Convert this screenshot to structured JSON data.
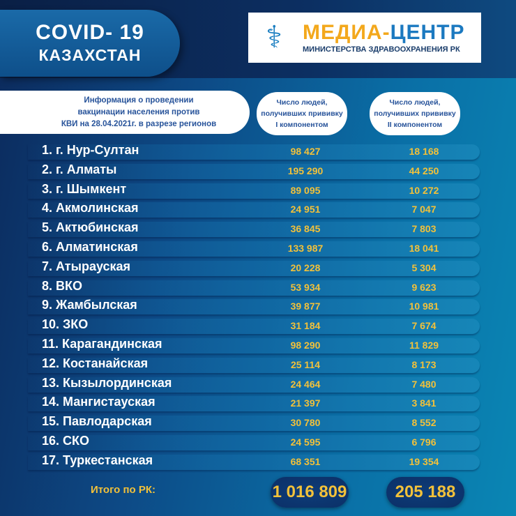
{
  "header": {
    "title_line1": "COVID- 19",
    "title_line2": "КАЗАХСТАН"
  },
  "logo": {
    "name_part1": "МЕДИА-",
    "name_part2": "ЦЕНТР",
    "subtitle": "МИНИСТЕРСТВА ЗДРАВООХРАНЕНИЯ РК",
    "icon": "caduceus-icon"
  },
  "info": {
    "line1": "Информация о проведении",
    "line2": "вакцинации населения против",
    "line3": "КВИ на 28.04.2021г. в разрезе регионов"
  },
  "columns": [
    {
      "line1": "Число людей,",
      "line2": "получивших прививку",
      "line3": "I компонентом"
    },
    {
      "line1": "Число людей,",
      "line2": "получивших прививку",
      "line3": "II компонентом"
    }
  ],
  "rows": [
    {
      "name": "1. г. Нур-Султан",
      "v1": "98 427",
      "v2": "18 168"
    },
    {
      "name": "2. г. Алматы",
      "v1": "195 290",
      "v2": "44 250"
    },
    {
      "name": "3. г. Шымкент",
      "v1": "89 095",
      "v2": "10 272"
    },
    {
      "name": "4. Акмолинская",
      "v1": "24 951",
      "v2": "7 047"
    },
    {
      "name": "5. Актюбинская",
      "v1": "36 845",
      "v2": "7 803"
    },
    {
      "name": "6. Алматинская",
      "v1": "133 987",
      "v2": "18 041"
    },
    {
      "name": "7. Атырауская",
      "v1": "20 228",
      "v2": "5 304"
    },
    {
      "name": "8. ВКО",
      "v1": "53 934",
      "v2": "9 623"
    },
    {
      "name": "9. Жамбылская",
      "v1": "39 877",
      "v2": "10 981"
    },
    {
      "name": "10. ЗКО",
      "v1": "31 184",
      "v2": "7 674"
    },
    {
      "name": "11. Карагандинская",
      "v1": "98 290",
      "v2": "11 829"
    },
    {
      "name": "12. Костанайская",
      "v1": "25 114",
      "v2": "8 173"
    },
    {
      "name": "13. Кызылординская",
      "v1": "24 464",
      "v2": "7 480"
    },
    {
      "name": "14. Мангистауская",
      "v1": "21 397",
      "v2": "3 841"
    },
    {
      "name": "15. Павлодарская",
      "v1": "30 780",
      "v2": "8 552"
    },
    {
      "name": "16. СКО",
      "v1": "24 595",
      "v2": "6 796"
    },
    {
      "name": "17. Туркестанская",
      "v1": "68 351",
      "v2": "19 354"
    }
  ],
  "total": {
    "label": "Итого по РК:",
    "v1": "1 016 809",
    "v2": "205 188"
  },
  "colors": {
    "accent": "#f2c13a",
    "navy": "#0c2a5c",
    "teal": "#0a86b4"
  }
}
